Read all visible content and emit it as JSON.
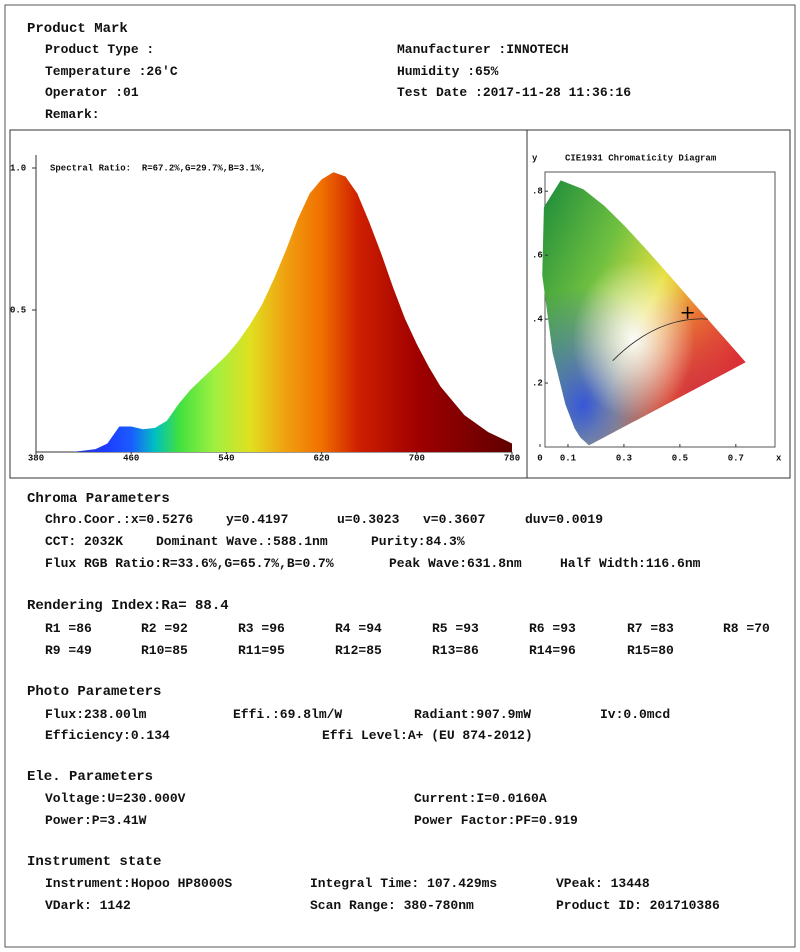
{
  "product_mark": {
    "title": "Product Mark",
    "rows": [
      [
        "Product Type :",
        "Manufacturer :INNOTECH"
      ],
      [
        "Temperature :26'C",
        "Humidity :65%"
      ],
      [
        "Operator :01",
        "Test Date :2017-11-28 11:36:16"
      ],
      [
        "Remark:"
      ]
    ]
  },
  "chart_data": [
    {
      "type": "area",
      "annotation": "Spectral Ratio:  R=67.2%,G=29.7%,B=3.1%,",
      "x": [
        380,
        390,
        400,
        410,
        420,
        430,
        440,
        450,
        460,
        470,
        480,
        490,
        500,
        510,
        520,
        530,
        540,
        550,
        560,
        570,
        580,
        590,
        600,
        610,
        620,
        630,
        640,
        650,
        660,
        670,
        680,
        690,
        700,
        710,
        720,
        730,
        740,
        750,
        760,
        770,
        780
      ],
      "values": [
        0,
        0,
        0,
        0,
        0.005,
        0.01,
        0.03,
        0.09,
        0.09,
        0.08,
        0.085,
        0.11,
        0.17,
        0.22,
        0.26,
        0.3,
        0.34,
        0.39,
        0.45,
        0.52,
        0.61,
        0.71,
        0.82,
        0.91,
        0.96,
        0.985,
        0.97,
        0.91,
        0.81,
        0.7,
        0.58,
        0.47,
        0.38,
        0.3,
        0.23,
        0.18,
        0.13,
        0.1,
        0.07,
        0.05,
        0.03
      ],
      "xlim": [
        380,
        780
      ],
      "xticks": [
        380,
        460,
        540,
        620,
        700,
        780
      ],
      "ylim": [
        0,
        1
      ],
      "yticks": [
        {
          "value": 0.5,
          "label": "0.5"
        },
        {
          "value": 1,
          "label": "1.0"
        }
      ]
    },
    {
      "type": "scatter",
      "title": "CIE1931 Chromaticity Diagram",
      "x_label": "x",
      "y_label": "y",
      "x": [
        0.5276
      ],
      "values": [
        0.4197
      ],
      "color": "#000000",
      "xlim": [
        0,
        0.84
      ],
      "xticks": [
        0,
        0.1,
        0.3,
        0.5,
        0.7
      ],
      "ylim": [
        0,
        0.86
      ],
      "yticks": [
        {
          "value": 0.2,
          "label": ".2"
        },
        {
          "value": 0.4,
          "label": ".4"
        },
        {
          "value": 0.6,
          "label": ".6"
        },
        {
          "value": 0.8,
          "label": ".8"
        }
      ]
    }
  ],
  "chroma_parameters": {
    "title": "Chroma Parameters",
    "rows": [
      [
        "Chro.Coor.:x=0.5276",
        "y=0.4197",
        "u=0.3023",
        "v=0.3607",
        "duv=0.0019"
      ],
      [
        "CCT: 2032K",
        "Dominant Wave.:588.1nm",
        "Purity:84.3%"
      ],
      [
        "Flux RGB Ratio:R=33.6%,G=65.7%,B=0.7%",
        "Peak Wave:631.8nm",
        "Half Width:116.6nm"
      ]
    ]
  },
  "rendering_index": {
    "title": "Rendering Index:Ra= 88.4",
    "rows": [
      [
        "R1 =86",
        "R2 =92",
        "R3 =96",
        "R4 =94",
        "R5 =93",
        "R6 =93",
        "R7 =83",
        "R8 =70"
      ],
      [
        "R9 =49",
        "R10=85",
        "R11=95",
        "R12=85",
        "R13=86",
        "R14=96",
        "R15=80"
      ]
    ]
  },
  "photo_parameters": {
    "title": "Photo Parameters",
    "rows": [
      [
        "Flux:238.00lm",
        "Effi.:69.8lm/W",
        "Radiant:907.9mW",
        "Iv:0.0mcd"
      ],
      [
        "Efficiency:0.134",
        "Effi Level:A+ (EU 874-2012)"
      ]
    ]
  },
  "ele_parameters": {
    "title": "Ele. Parameters",
    "rows": [
      [
        "Voltage:U=230.000V",
        "Current:I=0.0160A"
      ],
      [
        "Power:P=3.41W",
        "Power Factor:PF=0.919"
      ]
    ]
  },
  "instrument_state": {
    "title": "Instrument state",
    "rows": [
      [
        "Instrument:Hopoo HP8000S",
        "Integral Time: 107.429ms",
        "VPeak: 13448"
      ],
      [
        "VDark: 1142",
        "Scan Range: 380-780nm",
        "Product ID: 201710386"
      ]
    ]
  }
}
